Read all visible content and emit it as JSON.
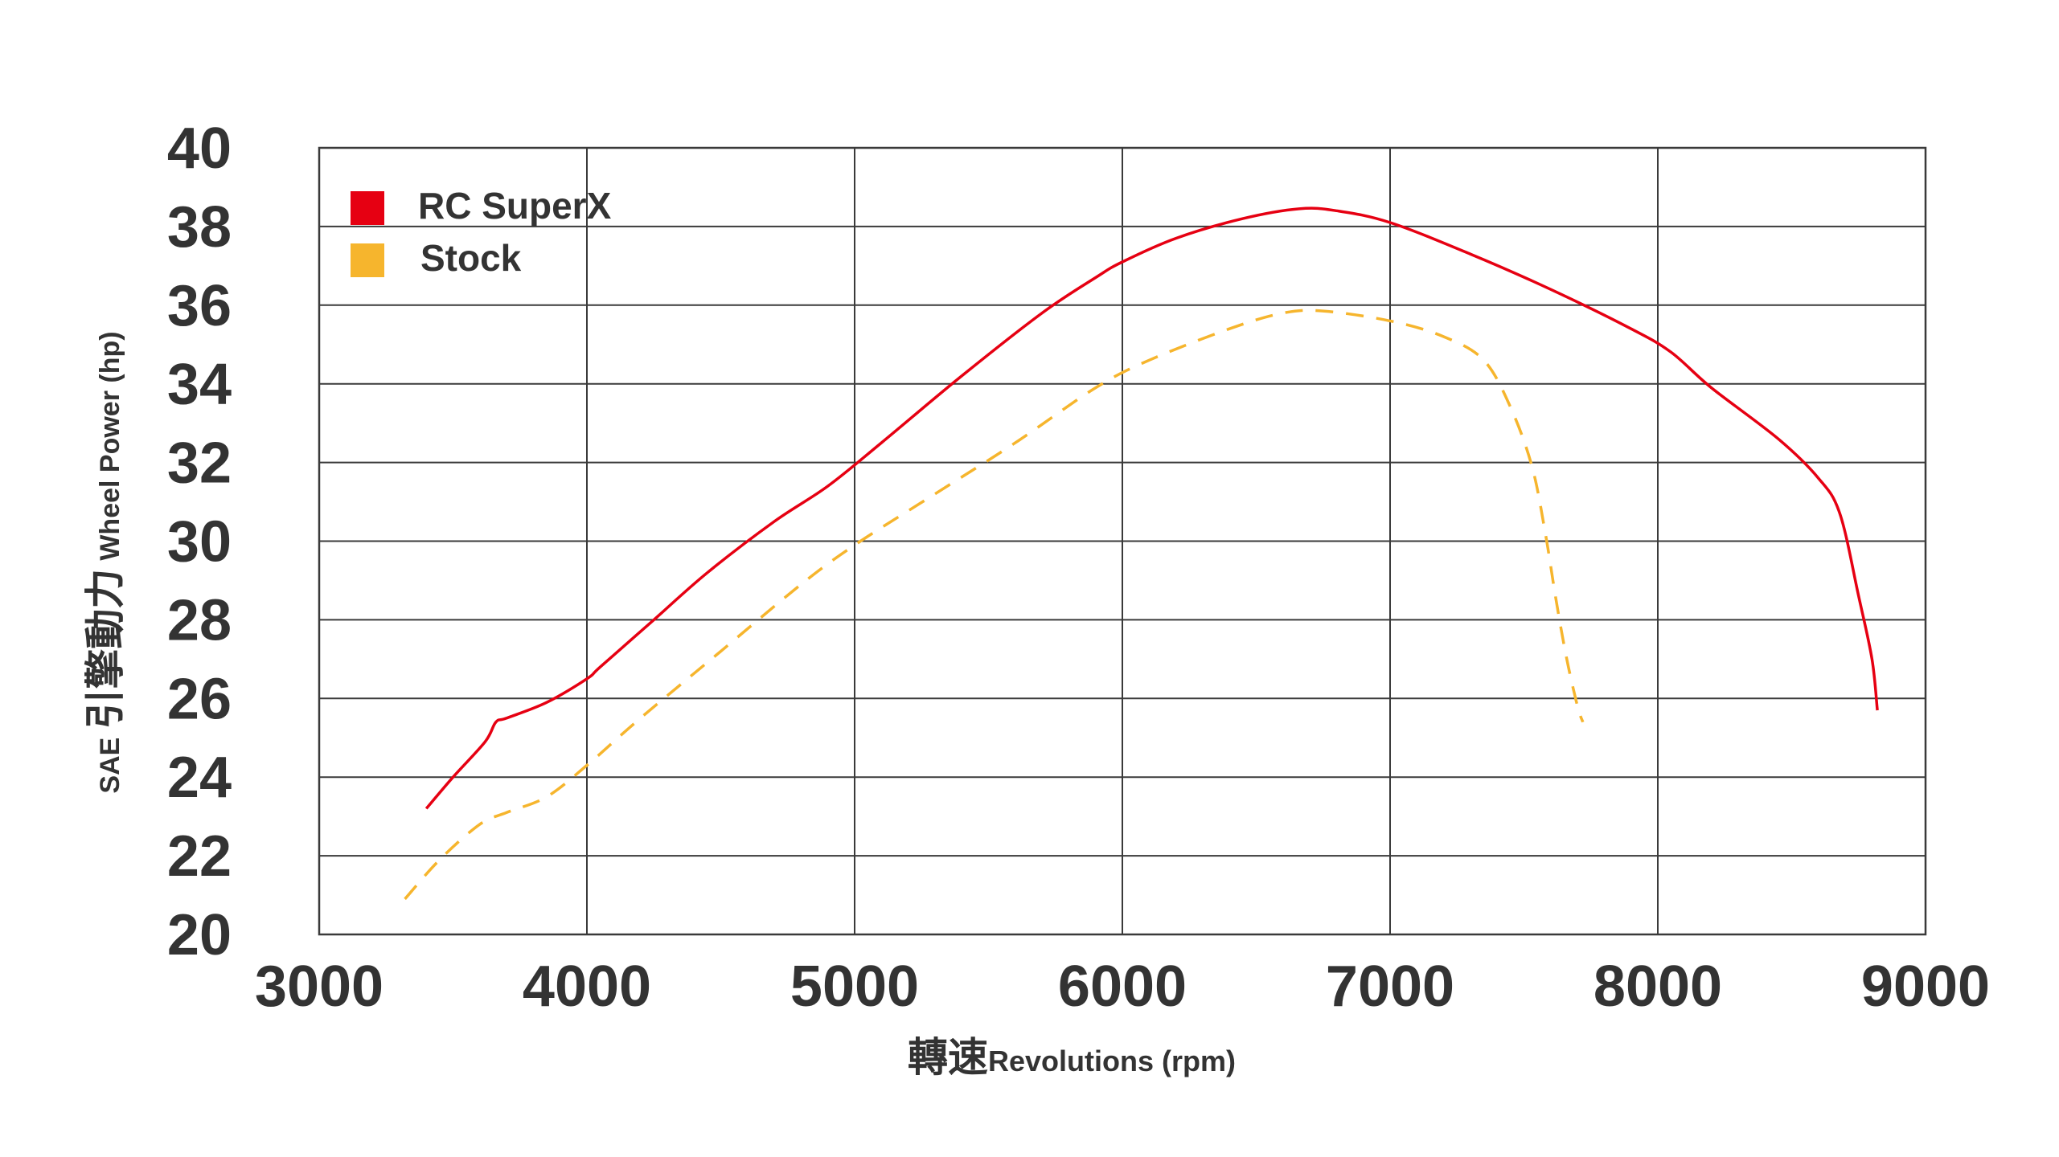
{
  "chart_data": {
    "type": "line",
    "xlabel_cjk": "轉速",
    "xlabel_en": "Revolutions (rpm)",
    "ylabel_prefix": "SAE",
    "ylabel_cjk": "引擎動力",
    "ylabel_en": "Wheel Power (hp)",
    "xlim": [
      3000,
      9000
    ],
    "ylim": [
      20,
      40
    ],
    "xticks": [
      3000,
      4000,
      5000,
      6000,
      7000,
      8000,
      9000
    ],
    "yticks": [
      20,
      22,
      24,
      26,
      28,
      30,
      32,
      34,
      36,
      38,
      40
    ],
    "grid": true,
    "legend_position": "top-left",
    "series": [
      {
        "name": "RC SuperX",
        "color": "#e60012",
        "style": "solid",
        "x": [
          3400,
          3500,
          3620,
          3660,
          3700,
          3850,
          4000,
          4050,
          4250,
          4450,
          4700,
          4900,
          5100,
          5400,
          5700,
          5900,
          6000,
          6200,
          6450,
          6660,
          6800,
          7000,
          7300,
          7600,
          7900,
          8050,
          8200,
          8450,
          8600,
          8680,
          8750,
          8800,
          8820
        ],
        "y": [
          23.2,
          24.0,
          24.9,
          25.4,
          25.5,
          25.9,
          26.5,
          26.8,
          28.0,
          29.2,
          30.5,
          31.4,
          32.5,
          34.2,
          35.8,
          36.7,
          37.1,
          37.7,
          38.2,
          38.45,
          38.4,
          38.1,
          37.3,
          36.4,
          35.4,
          34.8,
          33.9,
          32.6,
          31.6,
          30.7,
          28.6,
          27.0,
          25.7
        ],
        "label_x": "1.0"
      },
      {
        "name": "Stock",
        "color": "#f6b52d",
        "style": "dashed",
        "x": [
          3320,
          3450,
          3600,
          3700,
          3850,
          4000,
          4200,
          4500,
          4800,
          5000,
          5300,
          5600,
          5900,
          6100,
          6400,
          6600,
          6750,
          7000,
          7200,
          7350,
          7450,
          7530,
          7580,
          7620,
          7660,
          7700,
          7720
        ],
        "y": [
          20.9,
          21.9,
          22.8,
          23.1,
          23.5,
          24.3,
          25.5,
          27.2,
          28.9,
          29.9,
          31.2,
          32.5,
          33.9,
          34.6,
          35.4,
          35.8,
          35.85,
          35.6,
          35.2,
          34.6,
          33.4,
          31.9,
          30.2,
          28.5,
          27.0,
          25.8,
          25.4
        ]
      }
    ]
  },
  "colors": {
    "gridline": "#3a3a3a",
    "text": "#333333",
    "background": "#ffffff"
  }
}
